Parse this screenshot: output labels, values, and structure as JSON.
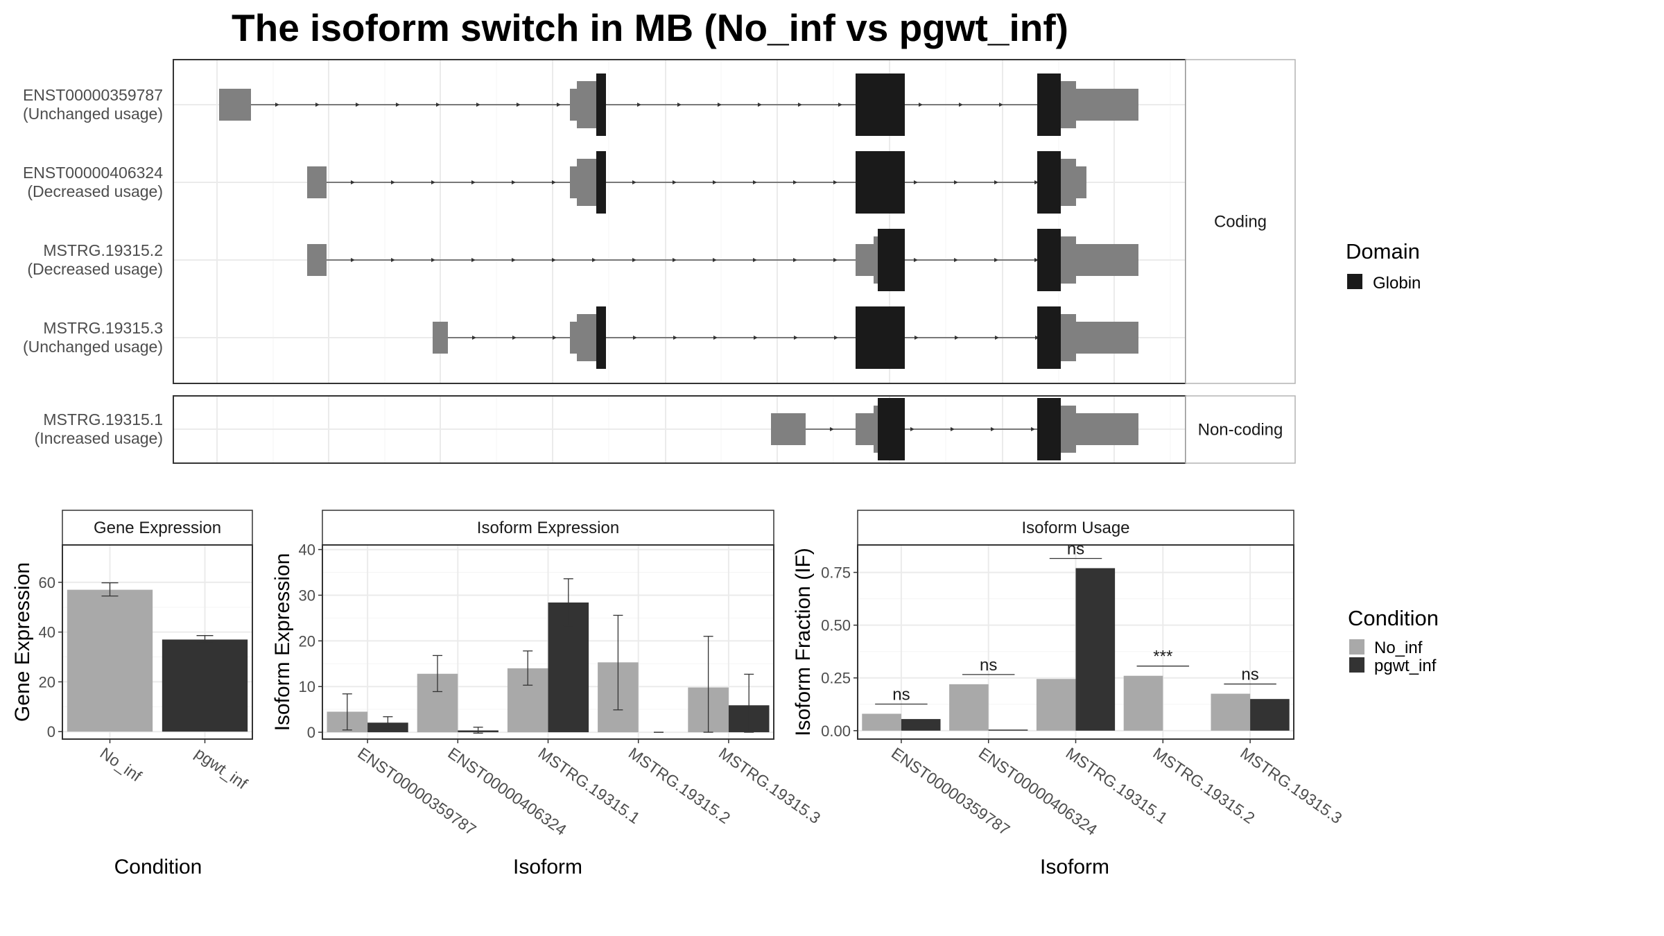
{
  "title": "The isoform switch in MB (No_inf vs pgwt_inf)",
  "colors": {
    "globin": "#1a1a1a",
    "utr": "#808080",
    "no_inf": "#a9a9a9",
    "pgwt_inf": "#333333",
    "grid": "#ebebeb",
    "panel_border": "#333333",
    "strip_bg": "#ffffff"
  },
  "legends": {
    "domain": {
      "title": "Domain",
      "items": [
        {
          "label": "Globin",
          "color": "#1a1a1a"
        }
      ]
    },
    "condition": {
      "title": "Condition",
      "items": [
        {
          "label": "No_inf",
          "color": "#a9a9a9"
        },
        {
          "label": "pgwt_inf",
          "color": "#333333"
        }
      ]
    }
  },
  "chart_data": [
    {
      "type": "gene-structure",
      "panel": "Coding",
      "strip": "Coding",
      "tracks": [
        {
          "name": "ENST00000359787",
          "usage": "(Unchanged usage)"
        },
        {
          "name": "ENST00000406324",
          "usage": "(Decreased usage)"
        },
        {
          "name": "MSTRG.19315.2",
          "usage": "(Decreased usage)"
        },
        {
          "name": "MSTRG.19315.3",
          "usage": "(Unchanged usage)"
        }
      ]
    },
    {
      "type": "gene-structure",
      "panel": "Non-coding",
      "strip": "Non-coding",
      "tracks": [
        {
          "name": "MSTRG.19315.1",
          "usage": "(Increased usage)"
        }
      ]
    },
    {
      "type": "bar",
      "strip": "Gene Expression",
      "xlabel": "Condition",
      "ylabel": "Gene Expression",
      "ylim": [
        -3,
        75
      ],
      "yticks": [
        0,
        20,
        40,
        60
      ],
      "categories": [
        "No_inf",
        "pgwt_inf"
      ],
      "values": [
        57,
        37
      ],
      "errors": [
        [
          54.5,
          59.8
        ],
        [
          35.8,
          38.6
        ]
      ]
    },
    {
      "type": "bar",
      "strip": "Isoform Expression",
      "xlabel": "Isoform",
      "ylabel": "Isoform Expression",
      "ylim": [
        -1.5,
        41
      ],
      "yticks": [
        0,
        10,
        20,
        30,
        40
      ],
      "categories": [
        "ENST00000359787",
        "ENST00000406324",
        "MSTRG.19315.1",
        "MSTRG.19315.2",
        "MSTRG.19315.3"
      ],
      "series": [
        {
          "name": "No_inf",
          "values": [
            4.5,
            12.8,
            14,
            15.3,
            9.8
          ],
          "errors": [
            [
              0.5,
              8.4
            ],
            [
              8.9,
              16.8
            ],
            [
              10.3,
              17.8
            ],
            [
              4.9,
              25.6
            ],
            [
              0,
              21
            ]
          ]
        },
        {
          "name": "pgwt_inf",
          "values": [
            2.1,
            0.4,
            28.4,
            0,
            5.9
          ],
          "errors": [
            [
              0.8,
              3.4
            ],
            [
              -0.2,
              1.1
            ],
            [
              23.3,
              33.6
            ],
            [
              0,
              0
            ],
            [
              0,
              12.7
            ]
          ]
        }
      ]
    },
    {
      "type": "bar",
      "strip": "Isoform Usage",
      "xlabel": "Isoform",
      "ylabel": "Isoform Fraction (IF)",
      "ylim": [
        -0.04,
        0.88
      ],
      "yticks": [
        "0.00",
        "0.25",
        "0.50",
        "0.75"
      ],
      "categories": [
        "ENST00000359787",
        "ENST00000406324",
        "MSTRG.19315.1",
        "MSTRG.19315.2",
        "MSTRG.19315.3"
      ],
      "series": [
        {
          "name": "No_inf",
          "values": [
            0.08,
            0.22,
            0.245,
            0.26,
            0.175
          ]
        },
        {
          "name": "pgwt_inf",
          "values": [
            0.055,
            0.005,
            0.77,
            0,
            0.15
          ]
        }
      ],
      "significance": [
        "ns",
        "ns",
        "ns",
        "***",
        "ns"
      ]
    }
  ]
}
